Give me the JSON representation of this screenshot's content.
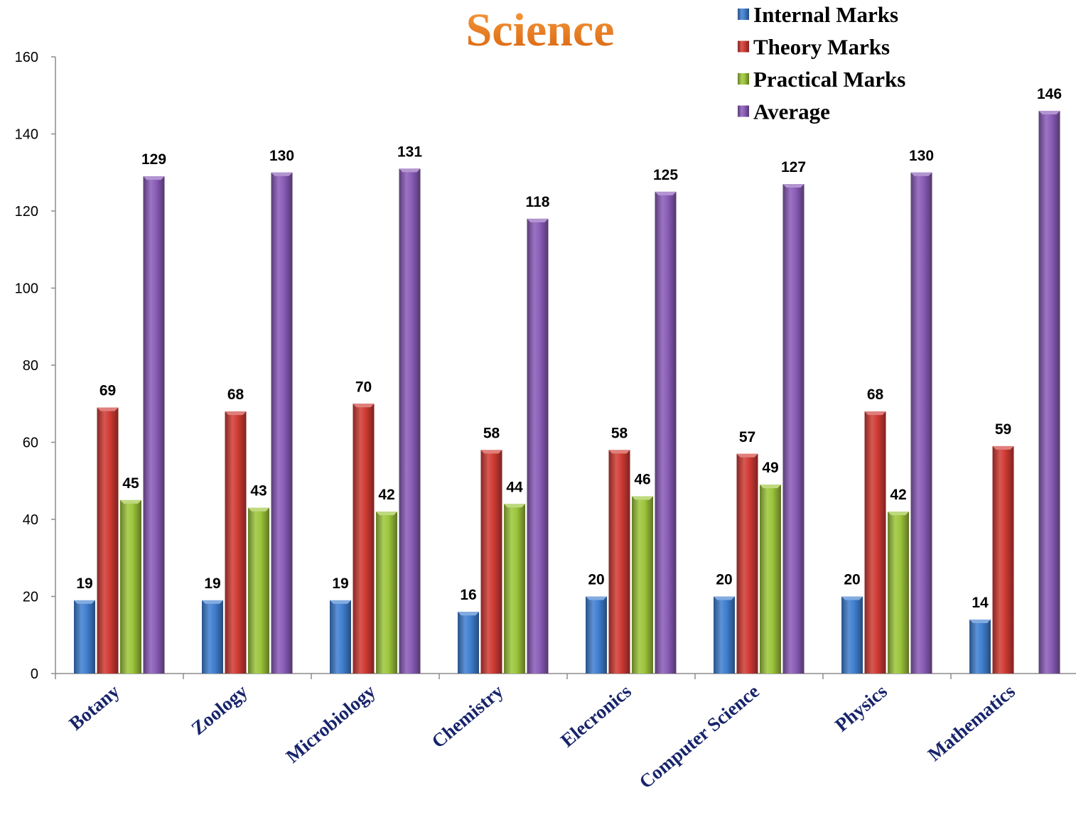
{
  "chart_data": {
    "type": "bar",
    "title": "Science",
    "categories": [
      "Botany",
      "Zoology",
      "Microbiology",
      "Chemistry",
      "Elecronics",
      "Computer Science",
      "Physics",
      "Mathematics"
    ],
    "series": [
      {
        "name": "Internal Marks",
        "color": "#3f7fd0",
        "values": [
          19,
          19,
          19,
          16,
          20,
          20,
          20,
          14
        ]
      },
      {
        "name": "Theory Marks",
        "color": "#d03a34",
        "values": [
          69,
          68,
          70,
          58,
          58,
          57,
          68,
          59
        ]
      },
      {
        "name": "Practical Marks",
        "color": "#9cc53a",
        "values": [
          45,
          43,
          42,
          44,
          46,
          49,
          42,
          null
        ]
      },
      {
        "name": "Average",
        "color": "#8a5cb8",
        "values": [
          129,
          130,
          131,
          118,
          125,
          127,
          130,
          146
        ]
      }
    ],
    "y_ticks": [
      "0",
      "20",
      "40",
      "60",
      "80",
      "100",
      "120",
      "140",
      "160"
    ],
    "ylim": [
      0,
      160
    ],
    "grid": false,
    "legend_position": "top-right"
  }
}
